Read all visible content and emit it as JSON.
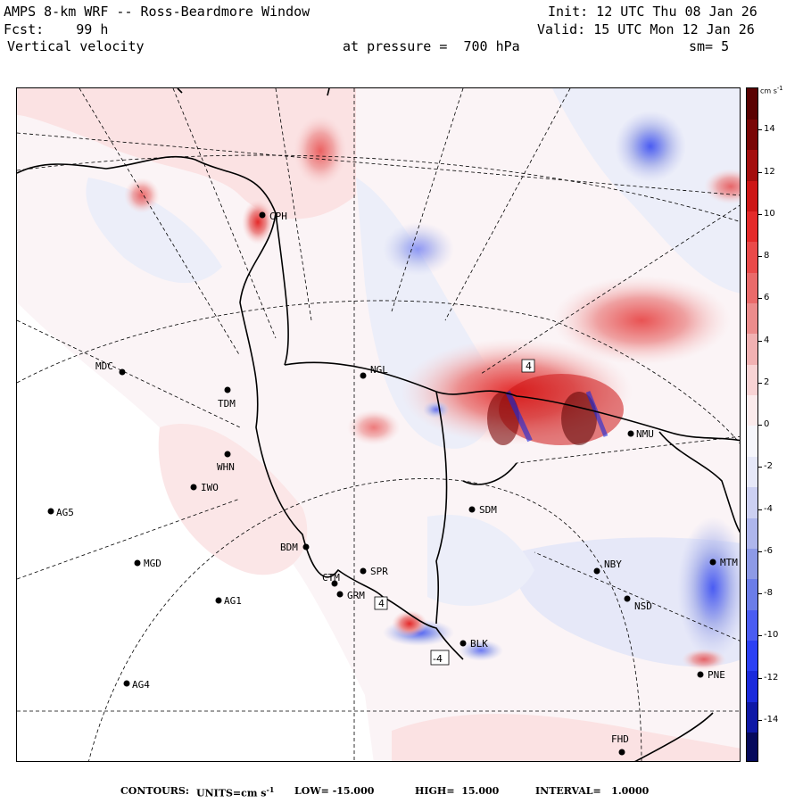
{
  "header": {
    "title": "AMPS 8-km WRF -- Ross-Beardmore Window",
    "forecast": "Fcst:    99 h",
    "field": "Vertical velocity",
    "init": "Init: 12 UTC Thu 08 Jan 26",
    "valid": "Valid: 15 UTC Mon 12 Jan 26",
    "pressure": "at pressure =  700 hPa",
    "smoothing": "sm= 5"
  },
  "colorbar": {
    "units_label": "cm s",
    "units_exp": "-1",
    "ticks": [
      "14",
      "12",
      "10",
      "8",
      "6",
      "4",
      "2",
      "0",
      "-2",
      "-4",
      "-6",
      "-8",
      "-10",
      "-12",
      "-14"
    ],
    "tick_values": [
      14,
      12,
      10,
      8,
      6,
      4,
      2,
      0,
      -2,
      -4,
      -6,
      -8,
      -10,
      -12,
      -14
    ],
    "range": [
      -16,
      16
    ],
    "colors": [
      "#060a5c",
      "#0e18a6",
      "#1a2adc",
      "#2b40f4",
      "#4a5cf2",
      "#6b7de8",
      "#8d9ae6",
      "#aeb6ec",
      "#ccd0f2",
      "#e6e8f8",
      "#f6f6fb",
      "#fbebec",
      "#f8d3d4",
      "#f1b1b2",
      "#ec8c8c",
      "#ea6a6a",
      "#ea4a4a",
      "#e42a2a",
      "#cd1616",
      "#a40e0e",
      "#7a0606",
      "#5a0202"
    ]
  },
  "stations": [
    {
      "id": "CPH",
      "label": "CPH"
    },
    {
      "id": "MDC",
      "label": "MDC"
    },
    {
      "id": "TDM",
      "label": "TDM"
    },
    {
      "id": "NGL",
      "label": "NGL"
    },
    {
      "id": "WHN",
      "label": "WHN"
    },
    {
      "id": "IWO",
      "label": "IWO"
    },
    {
      "id": "AG5",
      "label": "AG5"
    },
    {
      "id": "MGD",
      "label": "MGD"
    },
    {
      "id": "AG1",
      "label": "AG1"
    },
    {
      "id": "AG4",
      "label": "AG4"
    },
    {
      "id": "BDM",
      "label": "BDM"
    },
    {
      "id": "CTM",
      "label": "CTM"
    },
    {
      "id": "GRM",
      "label": "GRM"
    },
    {
      "id": "SPR",
      "label": "SPR"
    },
    {
      "id": "SDM",
      "label": "SDM"
    },
    {
      "id": "NBY",
      "label": "NBY"
    },
    {
      "id": "NSD",
      "label": "NSD"
    },
    {
      "id": "NMU",
      "label": "NMU"
    },
    {
      "id": "MTM",
      "label": "MTM"
    },
    {
      "id": "BLK",
      "label": "BLK"
    },
    {
      "id": "PNE",
      "label": "PNE"
    },
    {
      "id": "FHD",
      "label": "FHD"
    }
  ],
  "extrema_markers": [
    {
      "label": "4",
      "sign": "positive"
    },
    {
      "label": "4",
      "sign": "positive"
    },
    {
      "label": "-4",
      "sign": "negative"
    }
  ],
  "footer": {
    "contours_label": "CONTOURS:",
    "units_label": "UNITS=cm s",
    "units_exp": "-1",
    "low": "LOW= -15.000",
    "high": "HIGH=  15.000",
    "interval": "INTERVAL=   1.0000"
  }
}
